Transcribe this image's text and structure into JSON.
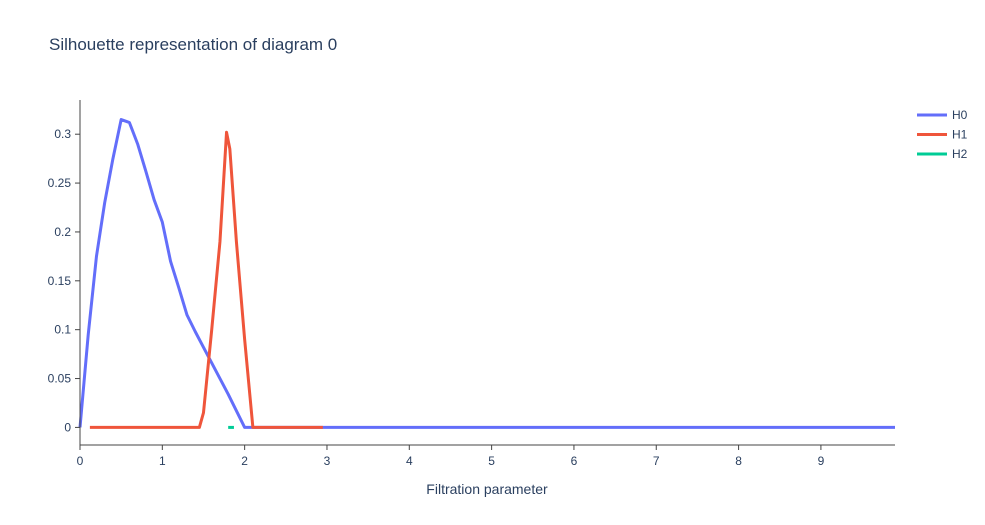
{
  "chart_data": {
    "type": "line",
    "title": "Silhouette representation of diagram 0",
    "xlabel": "Filtration parameter",
    "ylabel": "",
    "xlim": [
      0,
      9.9
    ],
    "ylim": [
      -0.018,
      0.335
    ],
    "x_ticks": [
      0,
      1,
      2,
      3,
      4,
      5,
      6,
      7,
      8,
      9
    ],
    "y_ticks": [
      0,
      0.05,
      0.1,
      0.15,
      0.2,
      0.25,
      0.3
    ],
    "grid": false,
    "legend_position": "top-right",
    "series": [
      {
        "name": "H0",
        "color": "#636efa",
        "x": [
          0,
          0.1,
          0.2,
          0.3,
          0.4,
          0.5,
          0.6,
          0.7,
          0.8,
          0.9,
          1.0,
          1.1,
          1.2,
          1.3,
          1.4,
          1.5,
          1.6,
          1.7,
          1.8,
          1.9,
          2.0,
          2.05,
          3.0,
          9.9
        ],
        "y": [
          0,
          0.095,
          0.175,
          0.23,
          0.275,
          0.315,
          0.312,
          0.29,
          0.262,
          0.233,
          0.21,
          0.17,
          0.143,
          0.115,
          0.098,
          0.082,
          0.066,
          0.05,
          0.034,
          0.017,
          0,
          0,
          0,
          0
        ]
      },
      {
        "name": "H1",
        "color": "#ef553b",
        "x": [
          0.12,
          1.45,
          1.5,
          1.6,
          1.7,
          1.78,
          1.82,
          1.9,
          2.0,
          2.1,
          2.95
        ],
        "y": [
          0,
          0,
          0.015,
          0.1,
          0.19,
          0.302,
          0.285,
          0.19,
          0.09,
          0,
          0
        ]
      },
      {
        "name": "H2",
        "color": "#00cc96",
        "x": [
          1.8,
          1.87
        ],
        "y": [
          0,
          0
        ]
      }
    ]
  }
}
